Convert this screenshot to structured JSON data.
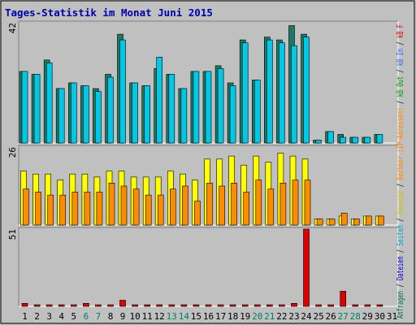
{
  "chart_data": {
    "type": "bar",
    "title": "Tages-Statistik im Monat Juni 2015",
    "categories": [
      "1",
      "2",
      "3",
      "4",
      "5",
      "6",
      "7",
      "8",
      "9",
      "10",
      "11",
      "12",
      "13",
      "14",
      "15",
      "16",
      "17",
      "18",
      "19",
      "20",
      "21",
      "22",
      "23",
      "24",
      "25",
      "26",
      "27",
      "28",
      "29",
      "30",
      "31"
    ],
    "weekend_days": [
      "6",
      "7",
      "13",
      "14",
      "20",
      "21",
      "27",
      "28"
    ],
    "panels": [
      {
        "name": "requests",
        "scale_label": "42",
        "ylim": [
          0,
          42
        ],
        "series": [
          {
            "name": "Seiten",
            "color": "#1a7a66",
            "values": [
              25,
              24,
              29,
              19,
              21,
              20,
              19,
              24,
              38,
              21,
              20,
              26,
              24,
              19,
              25,
              25,
              27,
              21,
              36,
              22,
              37,
              36,
              41,
              38,
              1,
              4,
              3,
              2,
              2,
              3,
              0
            ]
          },
          {
            "name": "Anfragen",
            "color": "#00c8e6",
            "values": [
              25,
              24,
              28,
              19,
              21,
              20,
              18,
              23,
              36,
              21,
              20,
              30,
              24,
              19,
              25,
              25,
              26,
              20,
              35,
              22,
              36,
              35,
              34,
              37,
              1,
              4,
              2,
              2,
              2,
              3,
              0
            ]
          },
          {
            "name": "Dateien",
            "color": "#0000cc",
            "values": [
              0,
              0,
              0,
              0,
              0,
              0,
              0,
              0,
              0,
              0,
              0,
              0,
              0,
              0,
              0,
              0,
              0,
              0,
              0,
              0,
              0,
              0,
              0,
              0,
              0,
              0,
              0,
              0,
              0,
              0,
              0
            ]
          }
        ]
      },
      {
        "name": "hosts",
        "scale_label": "26",
        "ylim": [
          0,
          26
        ],
        "series": [
          {
            "name": "Besuche",
            "color": "#ffff00",
            "values": [
              18,
              17,
              17,
              15,
              17,
              17,
              16,
              18,
              18,
              16,
              16,
              16,
              18,
              17,
              15,
              22,
              22,
              23,
              20,
              23,
              21,
              24,
              23,
              22,
              2,
              2,
              3,
              2,
              3,
              3,
              0
            ]
          },
          {
            "name": "Rechner (IP-Adressen)",
            "color": "#ff8c00",
            "values": [
              12,
              11,
              10,
              10,
              11,
              11,
              11,
              14,
              13,
              12,
              10,
              10,
              12,
              13,
              8,
              14,
              13,
              14,
              11,
              15,
              12,
              14,
              15,
              15,
              2,
              2,
              4,
              2,
              3,
              3,
              0
            ]
          }
        ]
      },
      {
        "name": "traffic",
        "scale_label": "51",
        "ylim": [
          0,
          51
        ],
        "series": [
          {
            "name": "kB F",
            "color": "#dd0000",
            "values": [
              2,
              1,
              1,
              1,
              1,
              2,
              1,
              1,
              4,
              1,
              1,
              1,
              1,
              1,
              1,
              1,
              1,
              1,
              1,
              1,
              1,
              1,
              2,
              51,
              1,
              1,
              10,
              1,
              1,
              1,
              0
            ]
          }
        ]
      }
    ],
    "legend_right": [
      {
        "text": "Anfragen",
        "color": "#007050"
      },
      {
        "text": " / ",
        "color": "#000000"
      },
      {
        "text": "Dateien",
        "color": "#0000cc"
      },
      {
        "text": " / ",
        "color": "#000000"
      },
      {
        "text": "Seiten",
        "color": "#00a0c0"
      },
      {
        "text": " / ",
        "color": "#000000"
      },
      {
        "text": "Besuche",
        "color": "#c8c800"
      },
      {
        "text": " / ",
        "color": "#000000"
      },
      {
        "text": "Rechner (IP-Adressen)",
        "color": "#ff8800"
      },
      {
        "text": " / ",
        "color": "#000000"
      },
      {
        "text": "kB Out",
        "color": "#009900"
      },
      {
        "text": " / ",
        "color": "#000000"
      },
      {
        "text": "kB In",
        "color": "#3366ff"
      },
      {
        "text": " / ",
        "color": "#000000"
      },
      {
        "text": "kB F",
        "color": "#dd0000"
      }
    ],
    "colors": {
      "page_bg": "#c0c0c0",
      "panel_bg": "#c0c0c0",
      "title": "#0000aa",
      "weekday_label": "#000000",
      "weekend_label": "#008060"
    }
  }
}
